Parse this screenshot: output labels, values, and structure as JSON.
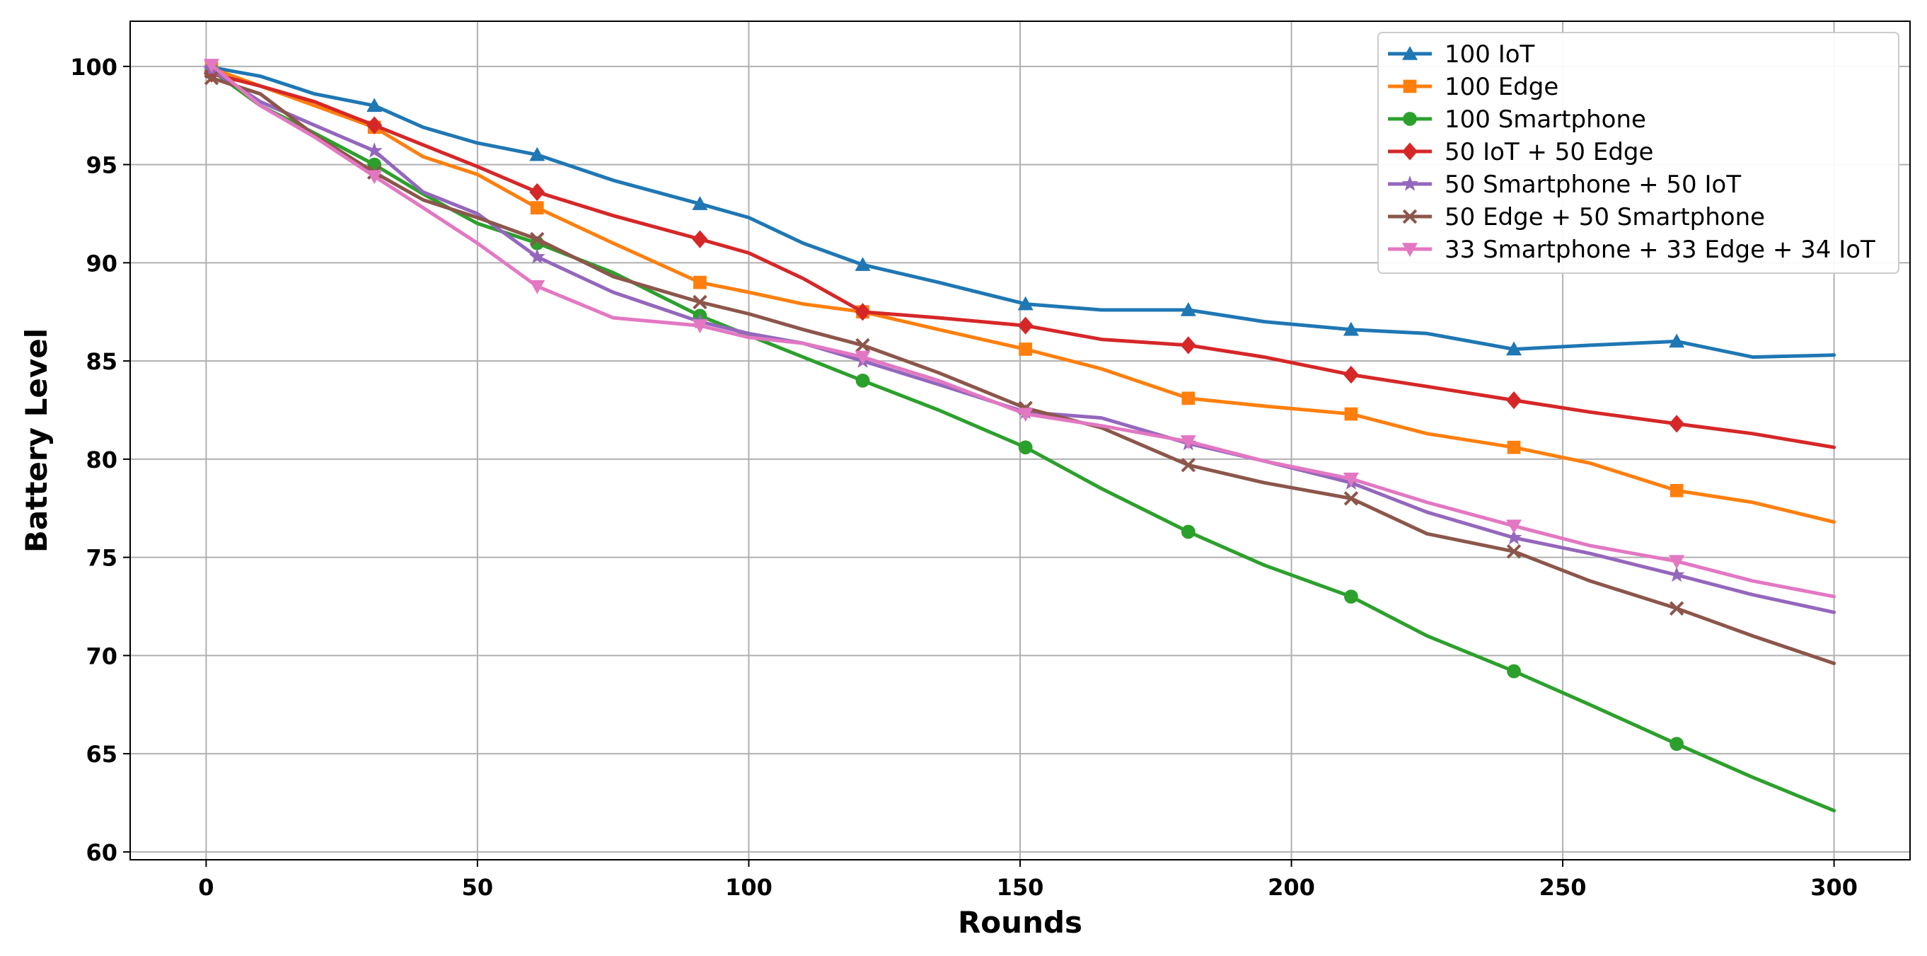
{
  "chart_data": {
    "type": "line",
    "title": "",
    "xlabel": "Rounds",
    "ylabel": "Battery Level",
    "xlim": [
      -14,
      314
    ],
    "ylim": [
      59.6,
      102.3
    ],
    "xticks": [
      0,
      50,
      100,
      150,
      200,
      250,
      300
    ],
    "yticks": [
      60,
      65,
      70,
      75,
      80,
      85,
      90,
      95,
      100
    ],
    "grid": true,
    "legend_position": "top-right",
    "marker_rounds": [
      1,
      31,
      61,
      91,
      121,
      151,
      181,
      211,
      241,
      271
    ],
    "series": [
      {
        "name": "100 IoT",
        "color": "#1f77b4",
        "marker": "triangle-up",
        "x": [
          0,
          10,
          20,
          31,
          40,
          50,
          61,
          75,
          91,
          100,
          110,
          121,
          135,
          151,
          165,
          181,
          195,
          211,
          225,
          241,
          255,
          271,
          285,
          300
        ],
        "y": [
          100.0,
          99.5,
          98.6,
          98.0,
          96.9,
          96.1,
          95.5,
          94.2,
          93.0,
          92.3,
          91.0,
          89.9,
          89.0,
          87.9,
          87.6,
          87.6,
          87.0,
          86.6,
          86.4,
          85.6,
          85.8,
          86.0,
          85.2,
          85.3
        ]
      },
      {
        "name": "100 Edge",
        "color": "#ff7f0e",
        "marker": "square",
        "x": [
          0,
          10,
          20,
          31,
          40,
          50,
          61,
          75,
          91,
          100,
          110,
          121,
          135,
          151,
          165,
          181,
          195,
          211,
          225,
          241,
          255,
          271,
          285,
          300
        ],
        "y": [
          100.0,
          99.0,
          98.0,
          96.9,
          95.4,
          94.5,
          92.8,
          91.0,
          89.0,
          88.5,
          87.9,
          87.5,
          86.6,
          85.6,
          84.6,
          83.1,
          82.7,
          82.3,
          81.3,
          80.6,
          79.8,
          78.4,
          77.8,
          76.8
        ]
      },
      {
        "name": "100 Smartphone",
        "color": "#2ca02c",
        "marker": "circle",
        "x": [
          0,
          10,
          20,
          31,
          40,
          50,
          61,
          75,
          91,
          100,
          110,
          121,
          135,
          151,
          165,
          181,
          195,
          211,
          225,
          241,
          255,
          271,
          285,
          300
        ],
        "y": [
          100.0,
          98.0,
          96.6,
          95.0,
          93.5,
          92.0,
          91.0,
          89.5,
          87.3,
          86.3,
          85.2,
          84.0,
          82.5,
          80.6,
          78.5,
          76.3,
          74.6,
          73.0,
          71.0,
          69.2,
          67.5,
          65.5,
          63.8,
          62.1
        ]
      },
      {
        "name": "50 IoT + 50 Edge",
        "color": "#d62728",
        "marker": "diamond",
        "x": [
          0,
          10,
          20,
          31,
          40,
          50,
          61,
          75,
          91,
          100,
          110,
          121,
          135,
          151,
          165,
          181,
          195,
          211,
          225,
          241,
          255,
          271,
          285,
          300
        ],
        "y": [
          99.7,
          99.0,
          98.2,
          97.0,
          96.0,
          94.9,
          93.6,
          92.4,
          91.2,
          90.5,
          89.2,
          87.5,
          87.2,
          86.8,
          86.1,
          85.8,
          85.2,
          84.3,
          83.7,
          83.0,
          82.4,
          81.8,
          81.3,
          80.6
        ]
      },
      {
        "name": "50 Smartphone + 50 IoT",
        "color": "#9467bd",
        "marker": "star",
        "x": [
          0,
          10,
          20,
          31,
          40,
          50,
          61,
          75,
          91,
          100,
          110,
          121,
          135,
          151,
          165,
          181,
          195,
          211,
          225,
          241,
          255,
          271,
          285,
          300
        ],
        "y": [
          100.0,
          98.2,
          97.0,
          95.7,
          93.6,
          92.5,
          90.3,
          88.5,
          87.0,
          86.4,
          85.9,
          85.0,
          83.8,
          82.4,
          82.1,
          80.8,
          79.9,
          78.8,
          77.3,
          76.0,
          75.2,
          74.1,
          73.1,
          72.2
        ]
      },
      {
        "name": "50 Edge + 50 Smartphone",
        "color": "#8c564b",
        "marker": "x",
        "x": [
          0,
          10,
          20,
          31,
          40,
          50,
          61,
          75,
          91,
          100,
          110,
          121,
          135,
          151,
          165,
          181,
          195,
          211,
          225,
          241,
          255,
          271,
          285,
          300
        ],
        "y": [
          99.5,
          98.6,
          96.5,
          94.6,
          93.2,
          92.3,
          91.2,
          89.3,
          88.0,
          87.4,
          86.6,
          85.8,
          84.4,
          82.6,
          81.6,
          79.7,
          78.8,
          78.0,
          76.2,
          75.3,
          73.8,
          72.4,
          71.0,
          69.6
        ]
      },
      {
        "name": "33 Smartphone + 33 Edge + 34 IoT",
        "color": "#e377c2",
        "marker": "triangle-down",
        "x": [
          0,
          10,
          20,
          31,
          40,
          50,
          61,
          75,
          91,
          100,
          110,
          121,
          135,
          151,
          165,
          181,
          195,
          211,
          225,
          241,
          255,
          271,
          285,
          300
        ],
        "y": [
          100.3,
          98.0,
          96.4,
          94.4,
          92.8,
          91.0,
          88.8,
          87.2,
          86.8,
          86.2,
          85.9,
          85.2,
          84.0,
          82.3,
          81.7,
          80.9,
          79.9,
          79.0,
          77.8,
          76.6,
          75.6,
          74.8,
          73.8,
          73.0
        ]
      }
    ]
  }
}
